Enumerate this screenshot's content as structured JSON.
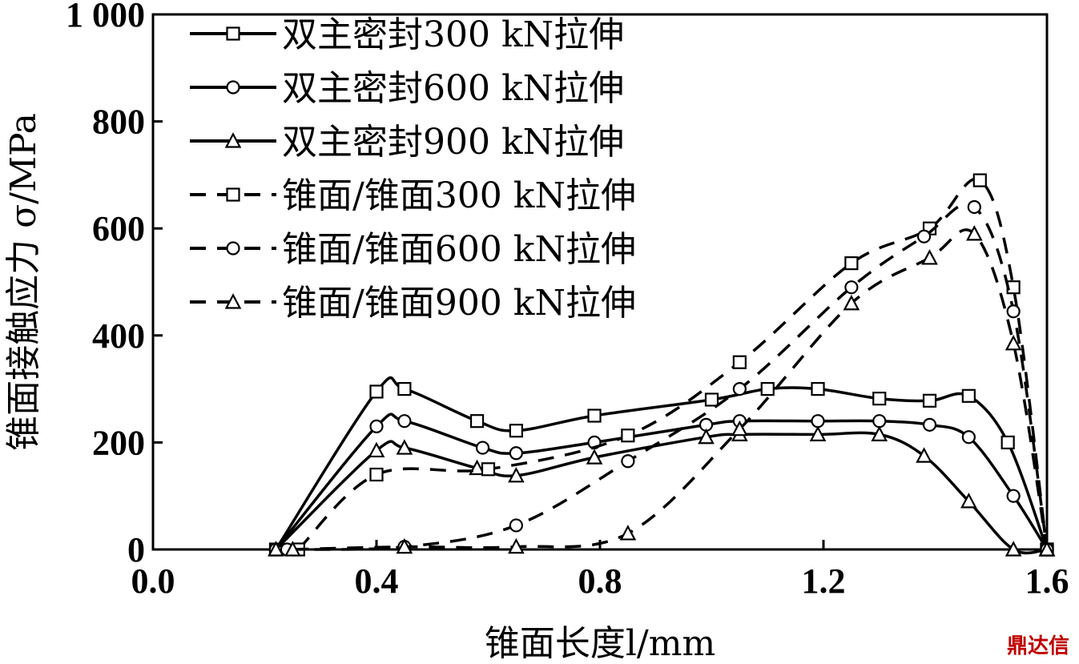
{
  "chart_data": {
    "type": "line",
    "title": "",
    "xlabel": "锥面长度l/mm",
    "ylabel": "锥面接触应力 σ/MPa",
    "xlim": [
      0.0,
      1.6
    ],
    "ylim": [
      0,
      1000
    ],
    "x_ticks": [
      "0.0",
      "0.4",
      "0.8",
      "1.2",
      "1.6"
    ],
    "y_ticks": [
      "0",
      "200",
      "400",
      "600",
      "800",
      "1 000"
    ],
    "legend_position": "top-left",
    "grid": false,
    "series": [
      {
        "name": "双主密封300 kN拉伸",
        "style": "solid",
        "marker": "square",
        "x": [
          0.22,
          0.4,
          0.45,
          0.58,
          0.65,
          0.79,
          1.0,
          1.1,
          1.19,
          1.3,
          1.39,
          1.46,
          1.53,
          1.6
        ],
        "y": [
          0,
          295,
          300,
          240,
          222,
          250,
          280,
          300,
          300,
          282,
          278,
          287,
          200,
          0
        ]
      },
      {
        "name": "双主密封600 kN拉伸",
        "style": "solid",
        "marker": "circle",
        "x": [
          0.22,
          0.4,
          0.45,
          0.59,
          0.65,
          0.79,
          0.99,
          1.05,
          1.19,
          1.3,
          1.39,
          1.46,
          1.54,
          1.6
        ],
        "y": [
          0,
          230,
          240,
          190,
          180,
          200,
          233,
          240,
          240,
          240,
          233,
          210,
          100,
          0
        ]
      },
      {
        "name": "双主密封900 kN拉伸",
        "style": "solid",
        "marker": "triangle",
        "x": [
          0.22,
          0.4,
          0.45,
          0.58,
          0.65,
          0.79,
          0.99,
          1.05,
          1.19,
          1.3,
          1.38,
          1.46,
          1.54,
          1.6
        ],
        "y": [
          0,
          185,
          190,
          152,
          138,
          172,
          210,
          215,
          215,
          215,
          175,
          90,
          0,
          0
        ]
      },
      {
        "name": "锥面/锥面300 kN拉伸",
        "style": "dashed",
        "marker": "square",
        "x": [
          0.26,
          0.4,
          0.6,
          0.85,
          1.05,
          1.25,
          1.39,
          1.48,
          1.54,
          1.6
        ],
        "y": [
          0,
          140,
          150,
          213,
          350,
          535,
          600,
          690,
          490,
          0
        ]
      },
      {
        "name": "锥面/锥面600 kN拉伸",
        "style": "dashed",
        "marker": "circle",
        "x": [
          0.24,
          0.45,
          0.65,
          0.85,
          1.05,
          1.25,
          1.38,
          1.47,
          1.54,
          1.6
        ],
        "y": [
          0,
          5,
          45,
          165,
          300,
          490,
          585,
          640,
          445,
          0
        ]
      },
      {
        "name": "锥面/锥面900 kN拉伸",
        "style": "dashed",
        "marker": "triangle",
        "x": [
          0.25,
          0.45,
          0.65,
          0.85,
          1.05,
          1.25,
          1.39,
          1.47,
          1.54,
          1.6
        ],
        "y": [
          0,
          5,
          5,
          30,
          225,
          460,
          545,
          590,
          385,
          0
        ]
      }
    ]
  },
  "watermark": "鼎达信"
}
